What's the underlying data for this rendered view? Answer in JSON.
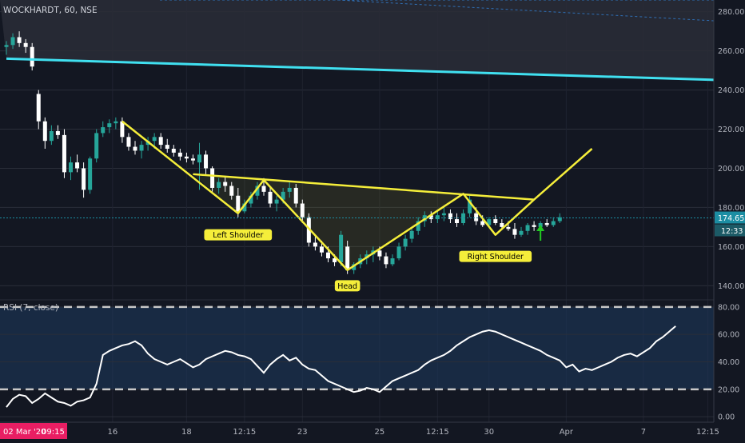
{
  "header": {
    "symbol_label": "WOCKHARDT, 60, NSE",
    "rsi_label": "RSI (7, close)"
  },
  "price_badge": "174.65",
  "time_badge": "12:33",
  "cursor_date_badge": {
    "date": "02 Mar '20",
    "time": "09:15"
  },
  "colors": {
    "background": "#131722",
    "up_candle": "#26a69a",
    "down_candle": "#ffffff",
    "pattern_line": "#f5ee3a",
    "trendline": "#40e0f0",
    "rsi_line": "#ffffff",
    "rsi_band": "#1e3a5f",
    "price_badge": "#1c8ea3",
    "date_badge": "#e91e63",
    "arrow": "#22c922"
  },
  "chart_data": [
    {
      "type": "candlestick",
      "title": "WOCKHARDT, 60, NSE",
      "y_axis_ticks": [
        "280.00",
        "260.00",
        "240.00",
        "220.00",
        "200.00",
        "180.00",
        "160.00",
        "140.00"
      ],
      "ylim": [
        134,
        286
      ],
      "x_axis_ticks": [
        "16",
        "18",
        "12:15",
        "23",
        "25",
        "12:15",
        "30",
        "Apr",
        "7",
        "12:15"
      ],
      "xlim": [
        0,
        112
      ],
      "last_price": 174.65,
      "annotations": [
        {
          "text": "Left Shoulder",
          "bar": 36,
          "price": 166
        },
        {
          "text": "Head",
          "bar": 53,
          "price": 140
        },
        {
          "text": "Right Shoulder",
          "bar": 76,
          "price": 155
        }
      ],
      "pattern_lines": [
        {
          "name": "head-and-shoulders-outline",
          "points": [
            [
              18,
              224
            ],
            [
              36,
              177
            ],
            [
              40,
              194
            ],
            [
              53,
              148
            ],
            [
              71,
              187
            ],
            [
              76,
              166
            ],
            [
              82,
              184
            ],
            [
              91,
              210
            ]
          ]
        },
        {
          "name": "neckline",
          "points": [
            [
              29,
              197
            ],
            [
              82,
              184
            ]
          ]
        }
      ],
      "trendline": {
        "points": [
          [
            0,
            256
          ],
          [
            112,
            245
          ]
        ]
      },
      "dashed_line": {
        "points": [
          [
            24,
            291
          ],
          [
            112,
            275
          ]
        ]
      },
      "ohlc": [
        [
          262,
          265,
          258,
          263
        ],
        [
          263,
          269,
          261,
          267
        ],
        [
          267,
          270,
          262,
          264
        ],
        [
          264,
          266,
          259,
          262
        ],
        [
          262,
          264,
          250,
          252
        ],
        [
          238,
          240,
          220,
          224
        ],
        [
          224,
          226,
          210,
          214
        ],
        [
          214,
          222,
          212,
          219
        ],
        [
          219,
          222,
          215,
          217
        ],
        [
          217,
          220,
          195,
          198
        ],
        [
          198,
          206,
          194,
          203
        ],
        [
          203,
          207,
          198,
          200
        ],
        [
          200,
          203,
          185,
          189
        ],
        [
          189,
          206,
          187,
          205
        ],
        [
          205,
          220,
          203,
          218
        ],
        [
          218,
          224,
          216,
          221
        ],
        [
          221,
          225,
          218,
          223
        ],
        [
          223,
          226,
          220,
          224
        ],
        [
          224,
          226,
          213,
          216
        ],
        [
          216,
          218,
          209,
          211
        ],
        [
          211,
          214,
          207,
          209
        ],
        [
          209,
          214,
          205,
          212
        ],
        [
          212,
          216,
          209,
          214
        ],
        [
          214,
          218,
          210,
          216
        ],
        [
          216,
          218,
          210,
          212
        ],
        [
          212,
          215,
          208,
          210
        ],
        [
          210,
          212,
          206,
          208
        ],
        [
          208,
          210,
          204,
          206
        ],
        [
          206,
          208,
          203,
          205
        ],
        [
          205,
          207,
          202,
          204
        ],
        [
          203,
          213,
          189,
          207
        ],
        [
          207,
          209,
          197,
          200
        ],
        [
          200,
          201,
          188,
          190
        ],
        [
          190,
          195,
          187,
          193
        ],
        [
          193,
          196,
          188,
          191
        ],
        [
          191,
          193,
          184,
          186
        ],
        [
          186,
          190,
          175,
          178
        ],
        [
          178,
          184,
          177,
          182
        ],
        [
          182,
          188,
          180,
          186
        ],
        [
          186,
          193,
          184,
          191
        ],
        [
          191,
          195,
          186,
          188
        ],
        [
          188,
          190,
          180,
          182
        ],
        [
          182,
          186,
          178,
          184
        ],
        [
          184,
          190,
          182,
          188
        ],
        [
          188,
          193,
          185,
          190
        ],
        [
          190,
          192,
          180,
          182
        ],
        [
          182,
          184,
          172,
          175
        ],
        [
          175,
          177,
          160,
          162
        ],
        [
          162,
          165,
          158,
          160
        ],
        [
          160,
          163,
          155,
          157
        ],
        [
          157,
          160,
          152,
          154
        ],
        [
          154,
          156,
          150,
          152
        ],
        [
          152,
          168,
          150,
          166
        ],
        [
          160,
          163,
          146,
          148
        ],
        [
          148,
          152,
          146,
          151
        ],
        [
          151,
          156,
          149,
          154
        ],
        [
          154,
          158,
          151,
          156
        ],
        [
          156,
          160,
          152,
          158
        ],
        [
          158,
          160,
          153,
          155
        ],
        [
          155,
          157,
          149,
          151
        ],
        [
          151,
          156,
          150,
          154
        ],
        [
          154,
          162,
          153,
          160
        ],
        [
          160,
          166,
          158,
          164
        ],
        [
          164,
          170,
          162,
          168
        ],
        [
          168,
          175,
          166,
          173
        ],
        [
          173,
          178,
          170,
          176
        ],
        [
          176,
          178,
          172,
          174
        ],
        [
          174,
          178,
          172,
          176
        ],
        [
          176,
          180,
          173,
          177
        ],
        [
          177,
          179,
          172,
          174
        ],
        [
          174,
          177,
          170,
          172
        ],
        [
          172,
          179,
          171,
          177
        ],
        [
          177,
          186,
          175,
          184
        ],
        [
          177,
          180,
          171,
          173
        ],
        [
          173,
          176,
          170,
          171
        ],
        [
          171,
          175,
          170,
          174
        ],
        [
          174,
          176,
          171,
          172
        ],
        [
          172,
          174,
          169,
          170
        ],
        [
          170,
          173,
          168,
          169
        ],
        [
          169,
          172,
          164,
          166
        ],
        [
          166,
          170,
          165,
          168
        ],
        [
          168,
          172,
          166,
          171
        ],
        [
          171,
          173,
          168,
          170
        ],
        [
          170,
          173,
          169,
          172
        ],
        [
          172,
          174,
          170,
          171
        ],
        [
          171,
          175,
          170,
          173
        ],
        [
          173,
          177,
          172,
          175
        ]
      ]
    },
    {
      "type": "line",
      "title": "RSI (7, close)",
      "y_axis_ticks": [
        "80.00",
        "60.00",
        "40.00",
        "20.00",
        "0.00"
      ],
      "ylim": [
        -4,
        84
      ],
      "reference_lines": [
        80,
        20
      ],
      "series": [
        {
          "values": [
            7,
            13,
            16,
            15,
            10,
            13,
            17,
            14,
            11,
            10,
            8,
            11,
            12,
            14,
            24,
            45,
            48,
            50,
            52,
            53,
            55,
            52,
            46,
            42,
            40,
            38,
            40,
            42,
            39,
            36,
            38,
            42,
            44,
            46,
            48,
            47,
            45,
            44,
            42,
            37,
            32,
            38,
            42,
            45,
            41,
            43,
            38,
            35,
            34,
            30,
            26,
            24,
            22,
            20,
            18,
            19,
            21,
            20,
            18,
            22,
            26,
            28,
            30,
            32,
            34,
            38,
            41,
            43,
            45,
            48,
            52,
            55,
            58,
            60,
            62,
            63,
            62,
            60,
            58,
            56,
            54,
            52,
            50,
            48,
            45,
            43,
            41,
            36,
            38,
            33,
            35,
            34,
            36,
            38,
            40,
            43,
            45,
            46,
            44,
            47,
            50,
            55,
            58,
            62,
            66
          ]
        }
      ]
    }
  ]
}
